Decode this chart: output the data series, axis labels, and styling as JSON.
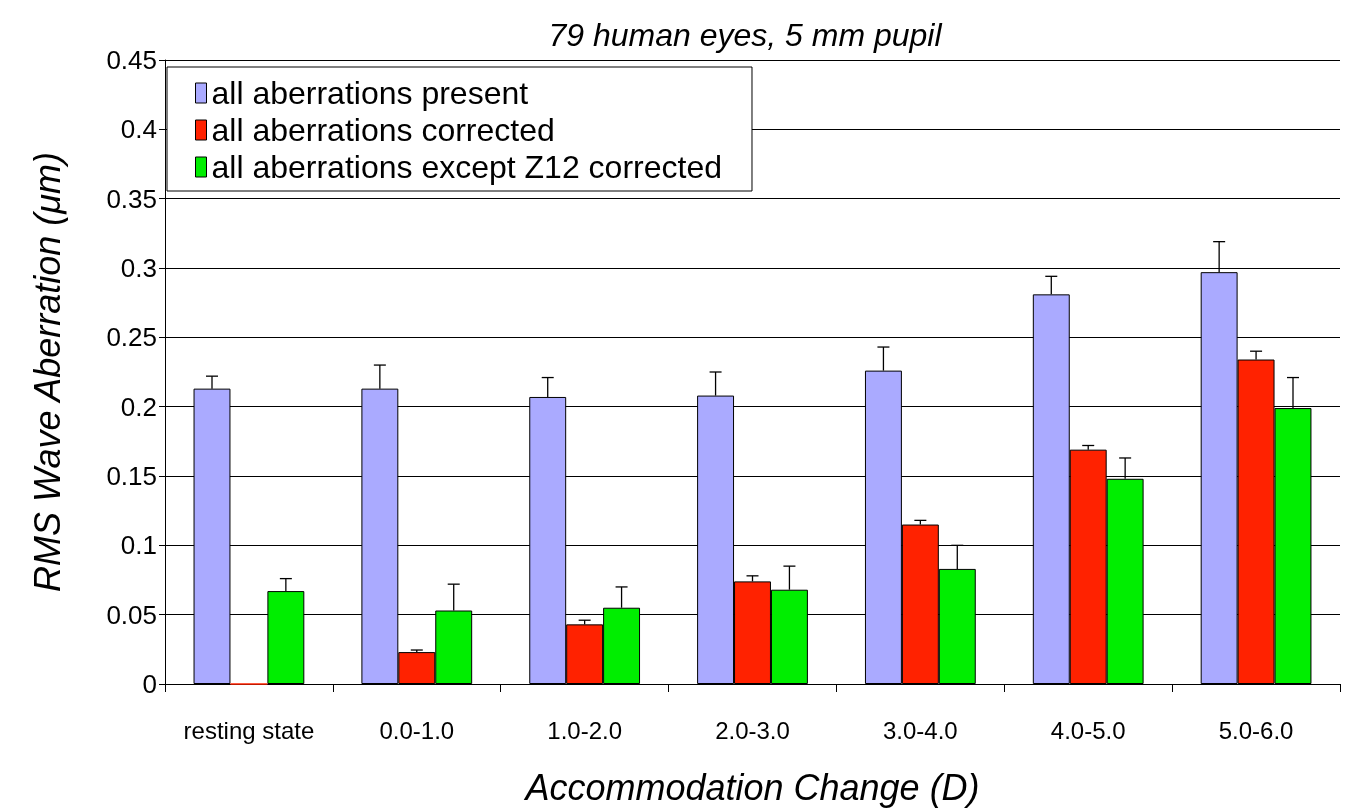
{
  "chart_data": {
    "type": "bar",
    "title": "79 human eyes, 5 mm pupil",
    "xlabel": "Accommodation Change (D)",
    "ylabel": "RMS Wave Aberration (μm)",
    "categories": [
      "resting state",
      "0.0-1.0",
      "1.0-2.0",
      "2.0-3.0",
      "3.0-4.0",
      "4.0-5.0",
      "5.0-6.0"
    ],
    "series": [
      {
        "name": "all aberrations present",
        "color": "#aaaaff",
        "values": [
          0.213,
          0.213,
          0.207,
          0.208,
          0.226,
          0.281,
          0.297
        ],
        "errors": [
          [
            0.213,
            0.222
          ],
          [
            0.213,
            0.23
          ],
          [
            0.207,
            0.221
          ],
          [
            0.208,
            0.225
          ],
          [
            0.226,
            0.243
          ],
          [
            0.281,
            0.294
          ],
          [
            0.297,
            0.319
          ]
        ]
      },
      {
        "name": "all aberrations corrected",
        "color": "#ff2200",
        "values": [
          0,
          0.023,
          0.043,
          0.074,
          0.115,
          0.169,
          0.234
        ],
        "errors": [
          null,
          [
            0.023,
            0.0245
          ],
          [
            0.043,
            0.046
          ],
          [
            0.074,
            0.078
          ],
          [
            0.115,
            0.118
          ],
          [
            0.169,
            0.172
          ],
          [
            0.234,
            0.24
          ]
        ]
      },
      {
        "name": "all aberrations except Z12 corrected",
        "color": "#00ee00",
        "values": [
          0.067,
          0.053,
          0.055,
          0.068,
          0.083,
          0.148,
          0.199
        ],
        "errors": [
          [
            0.067,
            0.076
          ],
          [
            0.053,
            0.072
          ],
          [
            0.055,
            0.07
          ],
          [
            0.068,
            0.085
          ],
          [
            0.083,
            0.1
          ],
          [
            0.148,
            0.163
          ],
          [
            0.199,
            0.221
          ]
        ]
      }
    ],
    "ylim": [
      0,
      0.45
    ],
    "yticks": [
      0,
      0.05,
      0.1,
      0.15,
      0.2,
      0.25,
      0.3,
      0.35,
      0.4,
      0.45
    ],
    "grid": "y",
    "legend": "top left"
  }
}
